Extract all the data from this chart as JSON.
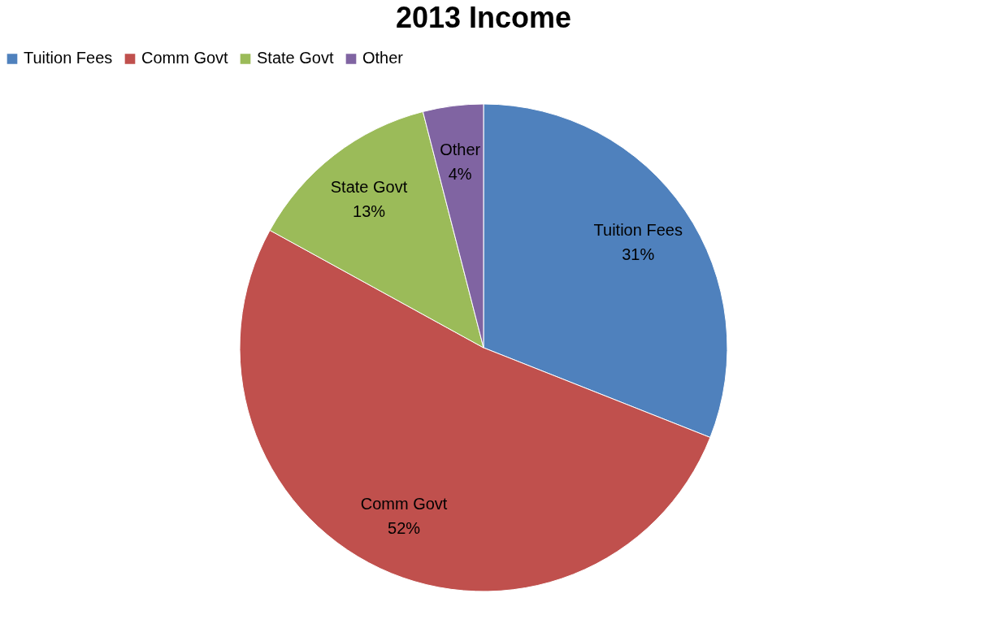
{
  "chart_data": {
    "type": "pie",
    "title": "2013 Income",
    "categories": [
      "Tuition Fees",
      "Comm Govt",
      "State Govt",
      "Other"
    ],
    "values": [
      31,
      52,
      13,
      4
    ],
    "colors": [
      "#4f81bd",
      "#c0504d",
      "#9bbb59",
      "#8064a2"
    ],
    "value_labels": [
      "31%",
      "52%",
      "13%",
      "4%"
    ],
    "legend": "top"
  }
}
